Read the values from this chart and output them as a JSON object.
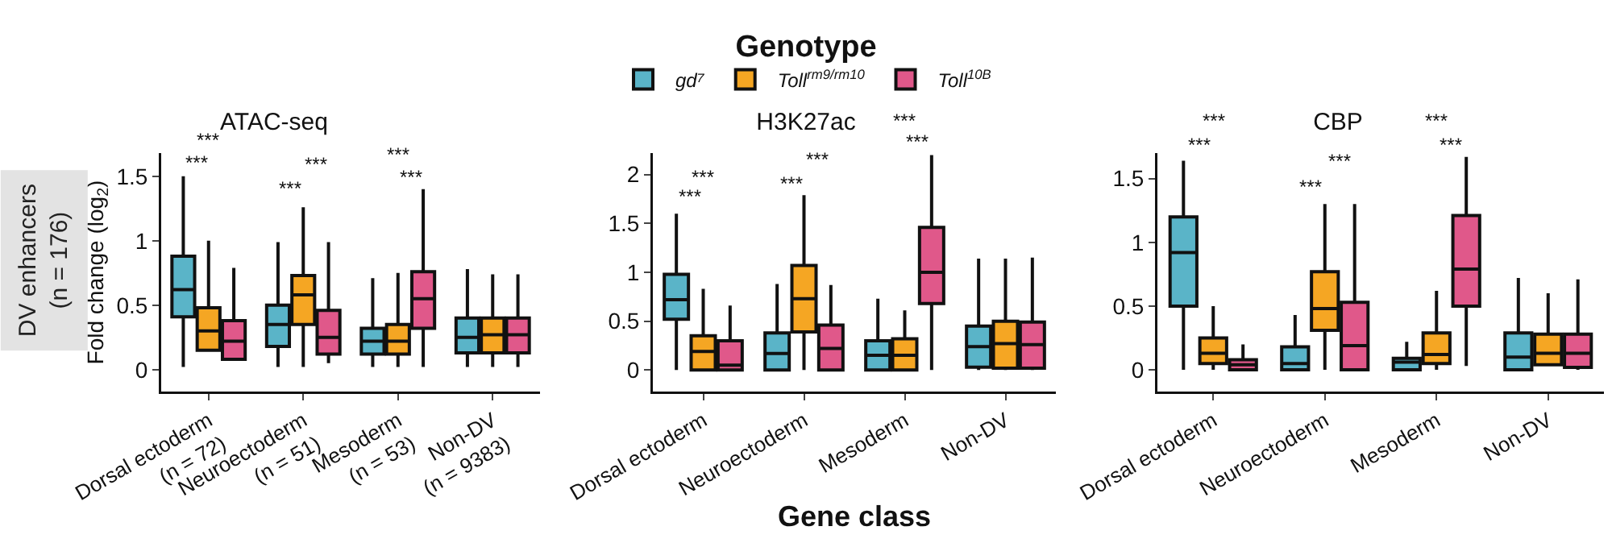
{
  "chart_data": [
    {
      "type": "box",
      "title": "ATAC-seq",
      "ylabel": "Fold change (log$_{2}$)",
      "categories": [
        "Dorsal ectoderm\n(n = 72)",
        "Neuroectoderm\n(n = 51)",
        "Mesoderm\n(n = 53)",
        "Non-DV\n(n = 9383)"
      ],
      "ylim": [
        -0.17,
        1.68
      ],
      "yticks": [
        0,
        0.5,
        1,
        1.5
      ],
      "grid": false,
      "legend": false,
      "series": [
        {
          "color": "#5ab4c8",
          "boxes": [
            {
              "low": 0.02,
              "q1": 0.41,
              "median": 0.62,
              "q3": 0.88,
              "high": 1.5
            },
            {
              "low": 0.02,
              "q1": 0.18,
              "median": 0.35,
              "q3": 0.5,
              "high": 0.99
            },
            {
              "low": 0.02,
              "q1": 0.12,
              "median": 0.22,
              "q3": 0.32,
              "high": 0.71
            },
            {
              "low": 0.02,
              "q1": 0.13,
              "median": 0.25,
              "q3": 0.4,
              "high": 0.78
            }
          ]
        },
        {
          "color": "#f5a623",
          "boxes": [
            {
              "low": 0.15,
              "q1": 0.15,
              "median": 0.3,
              "q3": 0.48,
              "high": 1.0
            },
            {
              "low": 0.02,
              "q1": 0.35,
              "median": 0.58,
              "q3": 0.73,
              "high": 1.26
            },
            {
              "low": 0.02,
              "q1": 0.12,
              "median": 0.22,
              "q3": 0.35,
              "high": 0.75
            },
            {
              "low": 0.02,
              "q1": 0.13,
              "median": 0.27,
              "q3": 0.4,
              "high": 0.74
            }
          ]
        },
        {
          "color": "#e0588a",
          "boxes": [
            {
              "low": 0.08,
              "q1": 0.08,
              "median": 0.22,
              "q3": 0.38,
              "high": 0.79
            },
            {
              "low": 0.05,
              "q1": 0.12,
              "median": 0.25,
              "q3": 0.46,
              "high": 0.99
            },
            {
              "low": 0.02,
              "q1": 0.32,
              "median": 0.55,
              "q3": 0.76,
              "high": 1.4
            },
            {
              "low": 0.02,
              "q1": 0.13,
              "median": 0.27,
              "q3": 0.4,
              "high": 0.74
            }
          ]
        }
      ],
      "annotations": [
        "DV enhancers\n(n = 176)",
        "***",
        "***",
        "***",
        "***",
        "***",
        "***"
      ]
    },
    {
      "type": "box",
      "title": "H3K27ac",
      "xlabel": "Gene class",
      "legend_title": "Genotype",
      "legend": "top",
      "categories": [
        "Dorsal ectoderm",
        "Neuroectoderm",
        "Mesoderm",
        "Non-DV"
      ],
      "ylim": [
        -0.22,
        2.22
      ],
      "yticks": [
        0,
        0.5,
        1,
        1.5,
        2
      ],
      "grid": false,
      "series": [
        {
          "name": "gd⁷",
          "color": "#5ab4c8",
          "boxes": [
            {
              "low": 0,
              "q1": 0.52,
              "median": 0.72,
              "q3": 0.98,
              "high": 1.6
            },
            {
              "low": 0,
              "q1": 0,
              "median": 0.17,
              "q3": 0.38,
              "high": 0.88
            },
            {
              "low": 0,
              "q1": 0,
              "median": 0.15,
              "q3": 0.3,
              "high": 0.73
            },
            {
              "low": 0,
              "q1": 0.03,
              "median": 0.24,
              "q3": 0.45,
              "high": 1.14
            }
          ]
        },
        {
          "name": "Toll$^{rm9/rm10}$",
          "color": "#f5a623",
          "boxes": [
            {
              "low": 0,
              "q1": 0,
              "median": 0.19,
              "q3": 0.35,
              "high": 0.83
            },
            {
              "low": 0,
              "q1": 0.39,
              "median": 0.73,
              "q3": 1.07,
              "high": 1.79
            },
            {
              "low": 0,
              "q1": 0,
              "median": 0.15,
              "q3": 0.32,
              "high": 0.61
            },
            {
              "low": 0,
              "q1": 0.02,
              "median": 0.27,
              "q3": 0.5,
              "high": 1.14
            }
          ]
        },
        {
          "name": "Toll$^{10B}$",
          "color": "#e0588a",
          "boxes": [
            {
              "low": 0,
              "q1": 0,
              "median": 0.05,
              "q3": 0.3,
              "high": 0.66
            },
            {
              "low": 0,
              "q1": 0,
              "median": 0.22,
              "q3": 0.46,
              "high": 0.87
            },
            {
              "low": 0,
              "q1": 0.68,
              "median": 1.0,
              "q3": 1.46,
              "high": 2.2
            },
            {
              "low": 0,
              "q1": 0.02,
              "median": 0.26,
              "q3": 0.49,
              "high": 1.15
            }
          ]
        }
      ],
      "annotations": [
        "***",
        "***",
        "***",
        "***",
        "***",
        "***"
      ]
    },
    {
      "type": "box",
      "title": "CBP",
      "categories": [
        "Dorsal ectoderm",
        "Neuroectoderm",
        "Mesoderm",
        "Non-DV"
      ],
      "ylim": [
        -0.17,
        1.7
      ],
      "yticks": [
        0,
        0.5,
        1,
        1.5
      ],
      "grid": false,
      "legend": false,
      "series": [
        {
          "color": "#5ab4c8",
          "boxes": [
            {
              "low": 0,
              "q1": 0.5,
              "median": 0.92,
              "q3": 1.2,
              "high": 1.64
            },
            {
              "low": 0,
              "q1": 0,
              "median": 0.05,
              "q3": 0.18,
              "high": 0.43
            },
            {
              "low": 0,
              "q1": 0,
              "median": 0.06,
              "q3": 0.09,
              "high": 0.22
            },
            {
              "low": 0,
              "q1": 0,
              "median": 0.1,
              "q3": 0.29,
              "high": 0.72
            }
          ]
        },
        {
          "color": "#f5a623",
          "boxes": [
            {
              "low": 0,
              "q1": 0.05,
              "median": 0.13,
              "q3": 0.25,
              "high": 0.5
            },
            {
              "low": 0,
              "q1": 0.31,
              "median": 0.48,
              "q3": 0.77,
              "high": 1.3
            },
            {
              "low": 0,
              "q1": 0.05,
              "median": 0.12,
              "q3": 0.29,
              "high": 0.62
            },
            {
              "low": 0.04,
              "q1": 0.04,
              "median": 0.13,
              "q3": 0.28,
              "high": 0.6
            }
          ]
        },
        {
          "color": "#e0588a",
          "boxes": [
            {
              "low": 0,
              "q1": 0,
              "median": 0.04,
              "q3": 0.08,
              "high": 0.2
            },
            {
              "low": 0,
              "q1": 0,
              "median": 0.19,
              "q3": 0.53,
              "high": 1.3
            },
            {
              "low": 0.03,
              "q1": 0.5,
              "median": 0.79,
              "q3": 1.21,
              "high": 1.67
            },
            {
              "low": 0,
              "q1": 0.02,
              "median": 0.13,
              "q3": 0.28,
              "high": 0.71
            }
          ]
        }
      ],
      "annotations": [
        "***",
        "***",
        "***",
        "***",
        "***",
        "***"
      ]
    }
  ]
}
